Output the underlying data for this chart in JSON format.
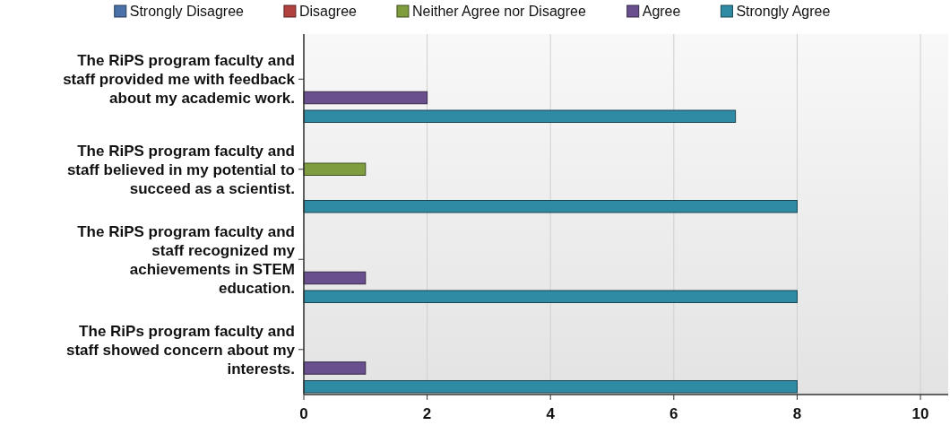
{
  "chart_data": {
    "type": "bar",
    "orientation": "horizontal",
    "categories": [
      "The RiPS program faculty and staff provided me with feedback about my academic work.",
      "The RiPS program faculty and staff believed in my potential to succeed as a scientist.",
      "The RiPS program faculty and staff recognized my achievements in STEM education.",
      "The RiPs program faculty and staff showed concern about my interests."
    ],
    "series": [
      {
        "name": "Strongly Disagree",
        "color": "#4a72a8",
        "values": [
          0,
          0,
          0,
          0
        ]
      },
      {
        "name": "Disagree",
        "color": "#b0413e",
        "values": [
          0,
          0,
          0,
          0
        ]
      },
      {
        "name": "Neither Agree nor Disagree",
        "color": "#7f9c3e",
        "values": [
          0,
          1,
          0,
          0
        ]
      },
      {
        "name": "Agree",
        "color": "#6a4f8e",
        "values": [
          2,
          0,
          1,
          1
        ]
      },
      {
        "name": "Strongly Agree",
        "color": "#2f8ba3",
        "values": [
          7,
          8,
          8,
          8
        ]
      }
    ],
    "xlim": [
      0,
      10.45
    ],
    "xticks": [
      0,
      2,
      4,
      6,
      8,
      10
    ],
    "grid": "x",
    "legend": "top"
  }
}
